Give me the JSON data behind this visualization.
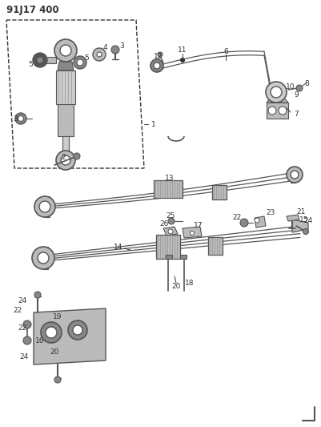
{
  "title": "91J17 400",
  "bg_color": "#ffffff",
  "line_color": "#333333",
  "gray_dark": "#555555",
  "gray_mid": "#888888",
  "gray_light": "#bbbbbb",
  "gray_fill": "#cccccc",
  "hatch_color": "#999999",
  "fig_width": 4.02,
  "fig_height": 5.33,
  "dpi": 100
}
